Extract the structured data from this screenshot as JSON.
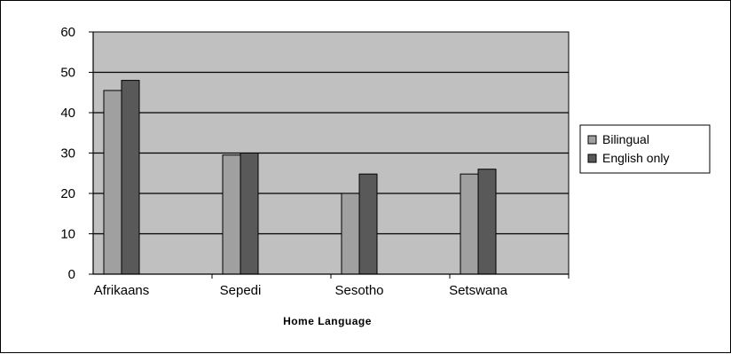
{
  "chart_data": {
    "type": "bar",
    "categories": [
      "Afrikaans",
      "Sepedi",
      "Sesotho",
      "Setswana"
    ],
    "series": [
      {
        "name": "Bilingual",
        "values": [
          45.5,
          29.5,
          20,
          24.8
        ],
        "color": "#a0a0a0"
      },
      {
        "name": "English only",
        "values": [
          48,
          30,
          24.8,
          26
        ],
        "color": "#595959"
      }
    ],
    "xlabel": "Home Language",
    "ylabel": "",
    "ylim": [
      0,
      60
    ],
    "yticks": [
      "0",
      "10",
      "20",
      "30",
      "40",
      "50",
      "60"
    ],
    "grid": true,
    "plot_background": "#c0c0c0",
    "legend_position": "right"
  }
}
